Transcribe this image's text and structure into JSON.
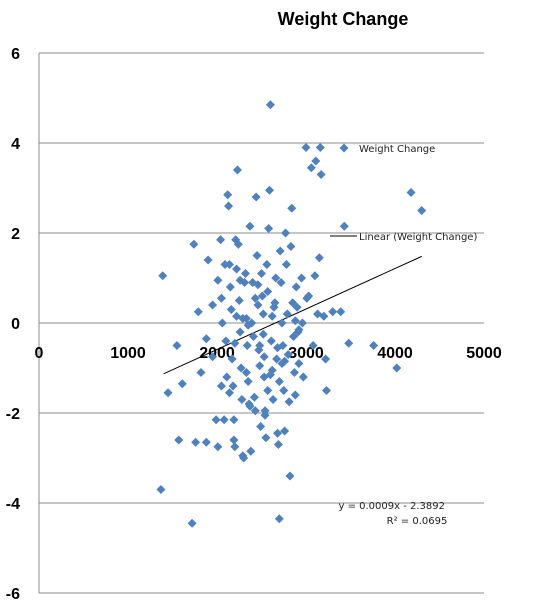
{
  "chart_data": {
    "type": "scatter",
    "title": "Weight Change",
    "xlabel": "",
    "ylabel": "",
    "xlim": [
      0,
      5000
    ],
    "ylim": [
      -6,
      6
    ],
    "x_ticks": [
      0,
      1000,
      2000,
      3000,
      4000,
      5000
    ],
    "y_ticks": [
      6,
      4,
      2,
      0,
      -2,
      -4,
      -6
    ],
    "grid": "horizontal",
    "marker_color": "#4F81BD",
    "trendline_color": "#000000",
    "series": [
      {
        "name": "Weight Change",
        "points": [
          [
            1390,
            1.05
          ],
          [
            1370,
            -3.7
          ],
          [
            1570,
            -2.6
          ],
          [
            1450,
            -1.55
          ],
          [
            1550,
            -0.5
          ],
          [
            1610,
            -1.35
          ],
          [
            1720,
            -4.45
          ],
          [
            1740,
            1.75
          ],
          [
            1790,
            0.25
          ],
          [
            1760,
            -2.65
          ],
          [
            1880,
            -2.65
          ],
          [
            1820,
            -1.1
          ],
          [
            1900,
            1.4
          ],
          [
            1950,
            0.4
          ],
          [
            1990,
            -2.15
          ],
          [
            2010,
            -2.75
          ],
          [
            2040,
            1.85
          ],
          [
            2050,
            0.55
          ],
          [
            2060,
            0.0
          ],
          [
            2080,
            -2.15
          ],
          [
            2100,
            -0.4
          ],
          [
            2110,
            -1.2
          ],
          [
            2120,
            2.85
          ],
          [
            2130,
            2.6
          ],
          [
            2140,
            1.3
          ],
          [
            2150,
            0.8
          ],
          [
            2160,
            0.3
          ],
          [
            2170,
            -0.8
          ],
          [
            2180,
            -1.4
          ],
          [
            2190,
            -2.6
          ],
          [
            2200,
            -2.75
          ],
          [
            2210,
            1.85
          ],
          [
            2220,
            1.2
          ],
          [
            2230,
            3.4
          ],
          [
            2240,
            1.75
          ],
          [
            2250,
            0.5
          ],
          [
            2260,
            -0.2
          ],
          [
            2270,
            -1.0
          ],
          [
            2280,
            -1.7
          ],
          [
            2290,
            -2.95
          ],
          [
            2300,
            -3.0
          ],
          [
            2310,
            0.9
          ],
          [
            2320,
            1.1
          ],
          [
            2330,
            0.1
          ],
          [
            2340,
            -0.5
          ],
          [
            2350,
            -1.3
          ],
          [
            2360,
            -1.8
          ],
          [
            2370,
            2.15
          ],
          [
            2380,
            -2.85
          ],
          [
            2390,
            0.0
          ],
          [
            2400,
            0.9
          ],
          [
            2410,
            -0.3
          ],
          [
            2420,
            -1.65
          ],
          [
            2430,
            -1.95
          ],
          [
            2440,
            2.8
          ],
          [
            2450,
            1.5
          ],
          [
            2460,
            0.4
          ],
          [
            2470,
            -0.6
          ],
          [
            2480,
            -0.95
          ],
          [
            2490,
            -2.3
          ],
          [
            2500,
            1.1
          ],
          [
            2510,
            0.6
          ],
          [
            2520,
            0.2
          ],
          [
            2530,
            -1.2
          ],
          [
            2540,
            -1.95
          ],
          [
            2550,
            -2.55
          ],
          [
            2560,
            1.3
          ],
          [
            2570,
            0.7
          ],
          [
            2580,
            2.1
          ],
          [
            2590,
            2.95
          ],
          [
            2600,
            4.85
          ],
          [
            2610,
            -0.4
          ],
          [
            2620,
            -1.05
          ],
          [
            2630,
            -1.7
          ],
          [
            2640,
            0.35
          ],
          [
            2660,
            1.0
          ],
          [
            2670,
            -0.8
          ],
          [
            2680,
            -2.45
          ],
          [
            2690,
            -2.7
          ],
          [
            2700,
            -4.35
          ],
          [
            2710,
            1.6
          ],
          [
            2720,
            0.9
          ],
          [
            2730,
            0.0
          ],
          [
            2740,
            -0.5
          ],
          [
            2750,
            -1.5
          ],
          [
            2760,
            -2.4
          ],
          [
            2770,
            2.0
          ],
          [
            2780,
            1.3
          ],
          [
            2790,
            0.2
          ],
          [
            2800,
            -0.7
          ],
          [
            2810,
            -1.75
          ],
          [
            2820,
            -3.4
          ],
          [
            2830,
            1.7
          ],
          [
            2840,
            2.55
          ],
          [
            2850,
            0.45
          ],
          [
            2860,
            -0.3
          ],
          [
            2870,
            -1.1
          ],
          [
            2880,
            -1.6
          ],
          [
            2890,
            0.8
          ],
          [
            2900,
            0.35
          ],
          [
            2910,
            -0.2
          ],
          [
            2920,
            -0.9
          ],
          [
            2950,
            1.0
          ],
          [
            2960,
            0.0
          ],
          [
            2970,
            -1.2
          ],
          [
            3000,
            3.9
          ],
          [
            3010,
            0.55
          ],
          [
            3030,
            0.6
          ],
          [
            3060,
            3.45
          ],
          [
            3080,
            -0.5
          ],
          [
            3100,
            1.05
          ],
          [
            3110,
            3.6
          ],
          [
            3130,
            0.2
          ],
          [
            3150,
            1.45
          ],
          [
            3160,
            3.9
          ],
          [
            3170,
            3.3
          ],
          [
            3200,
            0.15
          ],
          [
            3220,
            -0.8
          ],
          [
            3230,
            -1.5
          ],
          [
            3300,
            0.25
          ],
          [
            3390,
            0.25
          ],
          [
            3430,
            2.15
          ],
          [
            3480,
            -0.45
          ],
          [
            3760,
            -0.5
          ],
          [
            4020,
            -1.0
          ],
          [
            4180,
            2.9
          ],
          [
            4300,
            2.5
          ],
          [
            2200,
            -0.45
          ],
          [
            2260,
            0.95
          ],
          [
            2330,
            -1.1
          ],
          [
            2460,
            0.85
          ],
          [
            2530,
            -0.75
          ],
          [
            2600,
            -1.15
          ],
          [
            2650,
            0.45
          ],
          [
            2760,
            -0.85
          ],
          [
            2050,
            -1.4
          ],
          [
            1950,
            -0.75
          ],
          [
            2140,
            -1.55
          ],
          [
            2220,
            0.15
          ],
          [
            2350,
            -0.05
          ],
          [
            2430,
            0.55
          ],
          [
            2520,
            -0.25
          ],
          [
            2620,
            0.15
          ],
          [
            2700,
            -1.3
          ],
          [
            2880,
            0.05
          ],
          [
            1880,
            -0.35
          ],
          [
            2010,
            0.95
          ],
          [
            2090,
            1.3
          ],
          [
            2290,
            0.1
          ],
          [
            2480,
            -0.5
          ],
          [
            2570,
            -1.5
          ],
          [
            2730,
            -0.9
          ],
          [
            2920,
            -0.15
          ],
          [
            2190,
            -2.15
          ],
          [
            2370,
            -1.85
          ],
          [
            2540,
            -2.05
          ],
          [
            2680,
            -0.55
          ]
        ]
      }
    ],
    "trendline": {
      "name": "Linear (Weight Change)",
      "slope": 0.0009,
      "intercept": -2.3892,
      "x_range": [
        1400,
        4300
      ],
      "equation": "y = 0.0009x - 2.3892",
      "r_squared": "R² = 0.0695"
    },
    "legend_position": "right"
  }
}
